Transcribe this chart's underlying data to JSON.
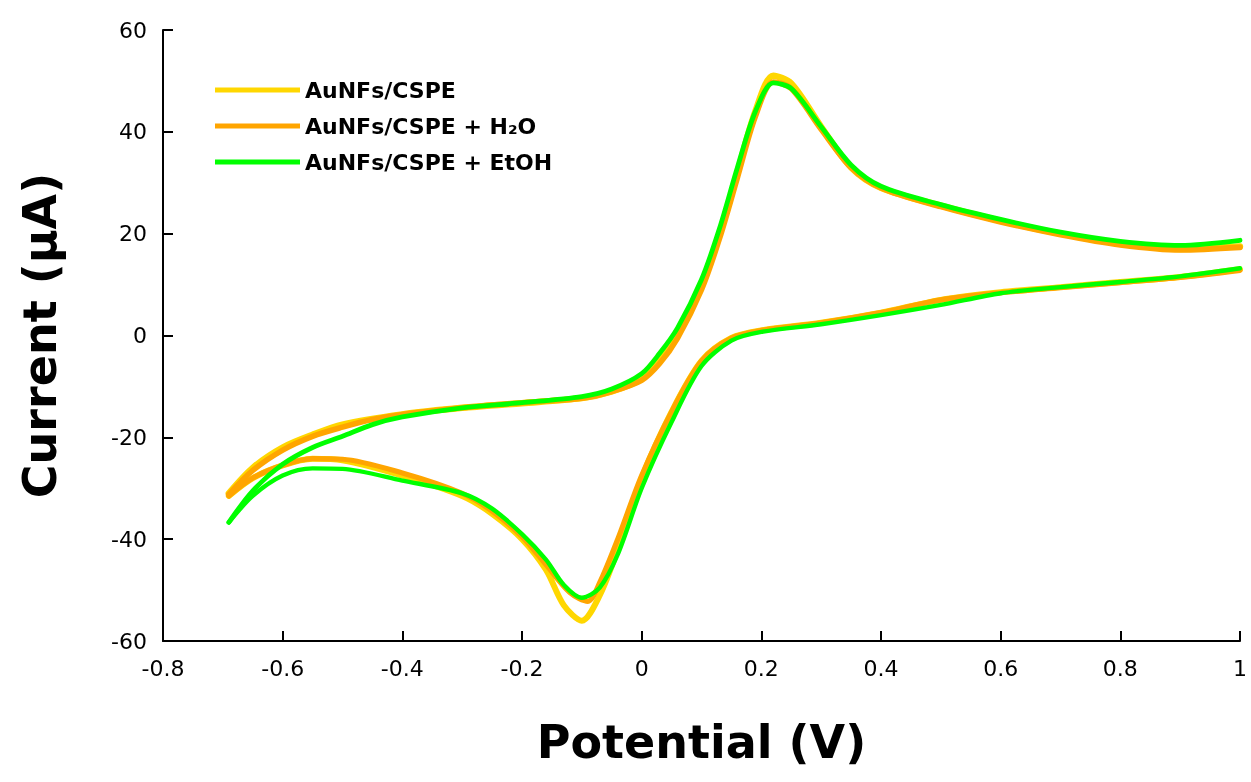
{
  "chart_data": {
    "type": "line",
    "xlabel": "Potential (V)",
    "ylabel": "Current (μA)",
    "xlim": [
      -0.8,
      1
    ],
    "xticks": [
      -0.8,
      -0.6,
      -0.4,
      -0.2,
      0,
      0.2,
      0.4,
      0.6,
      0.8,
      1
    ],
    "ylim": [
      -60,
      60
    ],
    "yticks": [
      -60,
      -40,
      -20,
      0,
      20,
      40,
      60
    ],
    "grid": false,
    "legend": "top left",
    "series": [
      {
        "name": "AuNFs/CSPE",
        "color": "#ffd700",
        "x": [
          -0.69,
          -0.65,
          -0.6,
          -0.55,
          -0.5,
          -0.4,
          -0.3,
          -0.2,
          -0.1,
          -0.05,
          0,
          0.03,
          0.06,
          0.1,
          0.13,
          0.16,
          0.19,
          0.22,
          0.25,
          0.3,
          0.35,
          0.4,
          0.5,
          0.6,
          0.7,
          0.8,
          0.9,
          1
        ],
        "values": [
          -31,
          -26,
          -22,
          -19.5,
          -17.5,
          -15.5,
          -14.2,
          -13.3,
          -12.3,
          -11,
          -8.5,
          -5,
          0,
          10,
          20,
          32,
          44,
          51,
          49.5,
          41,
          33,
          29,
          25.5,
          22.5,
          20,
          18,
          17,
          17.5
        ]
      },
      {
        "color": "#ffd700",
        "x": [
          1,
          0.9,
          0.8,
          0.7,
          0.6,
          0.5,
          0.4,
          0.3,
          0.2,
          0.15,
          0.1,
          0.05,
          0,
          -0.04,
          -0.07,
          -0.1,
          -0.13,
          -0.16,
          -0.2,
          -0.25,
          -0.3,
          -0.4,
          -0.5,
          -0.55,
          -0.6,
          -0.65,
          -0.69
        ],
        "values": [
          13,
          11.5,
          10.5,
          9.5,
          8.5,
          7,
          4.5,
          2.5,
          1,
          -0.5,
          -5,
          -15,
          -28,
          -42,
          -51,
          -56,
          -53,
          -46,
          -40,
          -35,
          -31.5,
          -27.5,
          -24.5,
          -24.2,
          -25.5,
          -28,
          -31.5
        ]
      },
      {
        "name": "AuNFs/CSPE + H₂O",
        "color": "#ffa500",
        "x": [
          -0.69,
          -0.65,
          -0.6,
          -0.55,
          -0.5,
          -0.45,
          -0.4,
          -0.3,
          -0.2,
          -0.1,
          -0.05,
          0,
          0.03,
          0.06,
          0.1,
          0.13,
          0.16,
          0.19,
          0.22,
          0.25,
          0.3,
          0.35,
          0.4,
          0.5,
          0.6,
          0.7,
          0.8,
          0.9,
          1
        ],
        "values": [
          -31.2,
          -26.5,
          -22.5,
          -19.8,
          -18,
          -16.5,
          -15.5,
          -14.2,
          -13.2,
          -12.3,
          -11,
          -8.8,
          -5.5,
          -0.5,
          9,
          19,
          31,
          43,
          49.8,
          48.5,
          40.5,
          33,
          29,
          25.3,
          22.3,
          19.8,
          17.8,
          16.8,
          17.3
        ]
      },
      {
        "color": "#ffa500",
        "x": [
          1,
          0.9,
          0.8,
          0.7,
          0.6,
          0.5,
          0.4,
          0.3,
          0.2,
          0.15,
          0.1,
          0.05,
          0,
          -0.04,
          -0.07,
          -0.09,
          -0.12,
          -0.16,
          -0.2,
          -0.25,
          -0.3,
          -0.4,
          -0.5,
          -0.55,
          -0.6,
          -0.65,
          -0.69
        ],
        "values": [
          12.8,
          11.4,
          10.4,
          9.4,
          8.4,
          7,
          4.5,
          2.5,
          1,
          -0.5,
          -5,
          -15,
          -27.5,
          -40,
          -48.5,
          -52.2,
          -50.5,
          -45,
          -39.5,
          -34.5,
          -31,
          -27,
          -24.3,
          -24.2,
          -25.5,
          -28,
          -31.5
        ]
      },
      {
        "name": "AuNFs/CSPE + EtOH",
        "color": "#00ff00",
        "x": [
          -0.69,
          -0.65,
          -0.6,
          -0.55,
          -0.5,
          -0.45,
          -0.4,
          -0.3,
          -0.2,
          -0.1,
          -0.05,
          0,
          0.03,
          0.06,
          0.1,
          0.13,
          0.16,
          0.19,
          0.22,
          0.25,
          0.3,
          0.35,
          0.4,
          0.5,
          0.6,
          0.7,
          0.8,
          0.9,
          1
        ],
        "values": [
          -36.7,
          -30.5,
          -25.3,
          -22,
          -19.8,
          -17.5,
          -16,
          -14.2,
          -13.2,
          -12,
          -10.5,
          -7.5,
          -3.5,
          1.5,
          11,
          21,
          33,
          44,
          49.6,
          48.5,
          41,
          33.5,
          29.3,
          25.7,
          22.8,
          20.3,
          18.5,
          17.7,
          18.7
        ]
      },
      {
        "color": "#00ff00",
        "x": [
          1,
          0.9,
          0.8,
          0.7,
          0.6,
          0.5,
          0.4,
          0.3,
          0.2,
          0.15,
          0.1,
          0.05,
          0,
          -0.04,
          -0.07,
          -0.1,
          -0.13,
          -0.16,
          -0.2,
          -0.25,
          -0.3,
          -0.4,
          -0.5,
          -0.55,
          -0.6,
          -0.65,
          -0.69
        ],
        "values": [
          13.2,
          11.6,
          10.5,
          9.5,
          8.3,
          6,
          4,
          2.2,
          0.7,
          -1,
          -6,
          -17,
          -30,
          -43,
          -49.5,
          -51.5,
          -49,
          -44,
          -39,
          -34,
          -31,
          -28.5,
          -26.2,
          -26.1,
          -27.5,
          -31.5,
          -36.7
        ]
      }
    ]
  }
}
